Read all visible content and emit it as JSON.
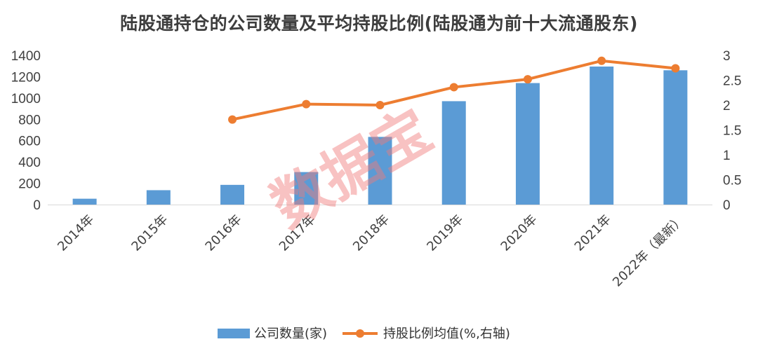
{
  "chart_data": {
    "type": "bar",
    "title": "陆股通持仓的公司数量及平均持股比例(陆股通为前十大流通股东)",
    "categories": [
      "2014年",
      "2015年",
      "2016年",
      "2017年",
      "2018年",
      "2019年",
      "2020年",
      "2021年",
      "2022年（最新）"
    ],
    "series": [
      {
        "name": "公司数量(家)",
        "type": "bar",
        "axis": "left",
        "color": "#5b9bd5",
        "values": [
          55,
          135,
          185,
          305,
          635,
          970,
          1140,
          1295,
          1260
        ]
      },
      {
        "name": "持股比例均值(%,右轴)",
        "type": "line",
        "axis": "right",
        "color": "#ed7d31",
        "values": [
          null,
          null,
          1.71,
          2.02,
          2.0,
          2.36,
          2.52,
          2.89,
          2.74
        ]
      }
    ],
    "ylim_left": [
      0,
      1400
    ],
    "yticks_left": [
      "0",
      "200",
      "400",
      "600",
      "800",
      "1000",
      "1200",
      "1400"
    ],
    "ylim_right": [
      0,
      3
    ],
    "yticks_right": [
      "0",
      "0.5",
      "1",
      "1.5",
      "2",
      "2.5",
      "3"
    ],
    "grid": false,
    "legend_position": "bottom"
  },
  "watermark": "数据宝"
}
